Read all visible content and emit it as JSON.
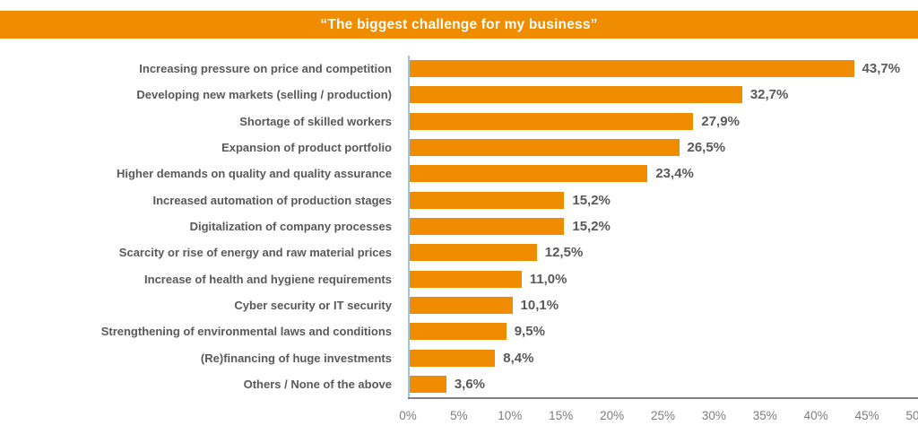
{
  "title_banner": {
    "text": "“The biggest challenge for my business”",
    "bg_color": "#F08C00",
    "text_color": "#FFFFFF"
  },
  "chart_data": {
    "type": "bar",
    "orientation": "horizontal",
    "title": "“The biggest challenge for my business”",
    "categories": [
      "Increasing pressure on price and competition",
      "Developing new markets (selling / production)",
      "Shortage of skilled workers",
      "Expansion of product portfolio",
      "Higher demands on quality and quality assurance",
      "Increased automation of production stages",
      "Digitalization of company processes",
      "Scarcity or rise of energy and raw material prices",
      "Increase of health and hygiene requirements",
      "Cyber security or IT security",
      "Strengthening of environmental laws and conditions",
      "(Re)financing of huge investments",
      "Others / None of the above"
    ],
    "values": [
      43.7,
      32.7,
      27.9,
      26.5,
      23.4,
      15.2,
      15.2,
      12.5,
      11.0,
      10.1,
      9.5,
      8.4,
      3.6
    ],
    "value_labels": [
      "43,7%",
      "32,7%",
      "27,9%",
      "26,5%",
      "23,4%",
      "15,2%",
      "15,2%",
      "12,5%",
      "11,0%",
      "10,1%",
      "9,5%",
      "8,4%",
      "3,6%"
    ],
    "xlabel": "",
    "ylabel": "",
    "xlim": [
      0,
      50
    ],
    "x_ticks": [
      "0%",
      "5%",
      "10%",
      "15%",
      "20%",
      "25%",
      "30%",
      "35%",
      "40%",
      "45%",
      "50%"
    ],
    "grid": "off",
    "legend": "none",
    "bar_color": "#F08C00",
    "axis_line_color": "#9DC3E6",
    "baseline_color": "#808080",
    "category_label_color": "#595959",
    "value_label_color": "#595959",
    "tick_label_color": "#7C7C7C"
  }
}
